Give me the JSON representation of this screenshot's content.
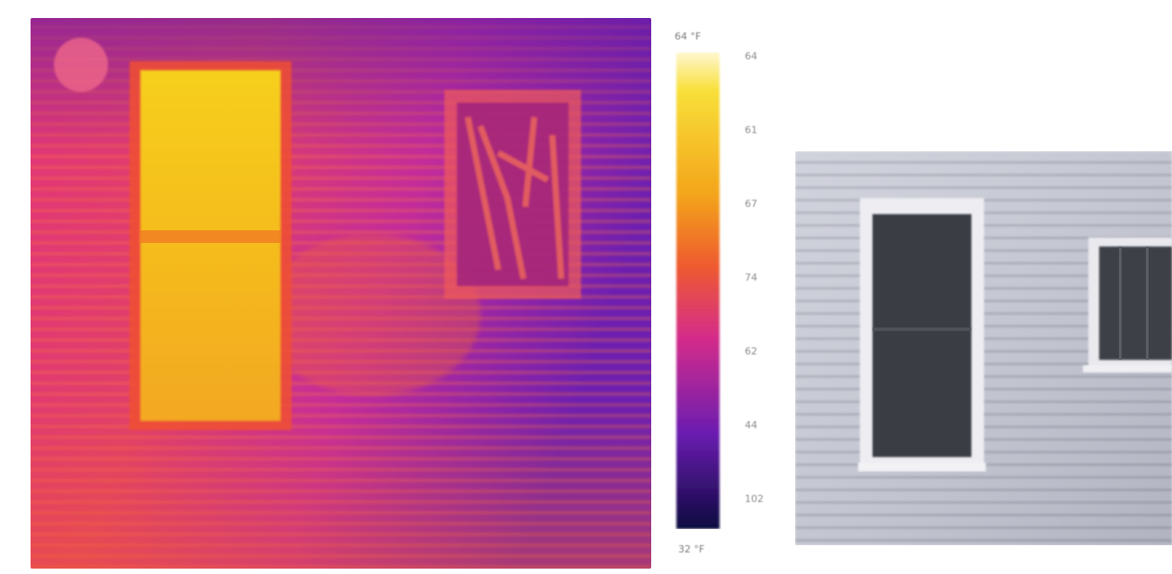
{
  "thermal_image": {
    "description_icon": "thermal-camera-image",
    "colors": {
      "hot": "#f7d21a",
      "warm": "#ef4a32",
      "mid": "#d42c8a",
      "cool": "#7a1fb0",
      "cold": "#2a0f6a"
    }
  },
  "color_scale": {
    "top_label": "64 °F",
    "bottom_label": "32 °F",
    "ticks": [
      "64",
      "61",
      "67",
      "74",
      "62",
      "44",
      "102"
    ]
  },
  "photo_image": {
    "description_icon": "house-siding-photo",
    "colors": {
      "siding": "#c9cbd6",
      "window": "#3b3d42",
      "trim": "#eeeeef"
    }
  }
}
